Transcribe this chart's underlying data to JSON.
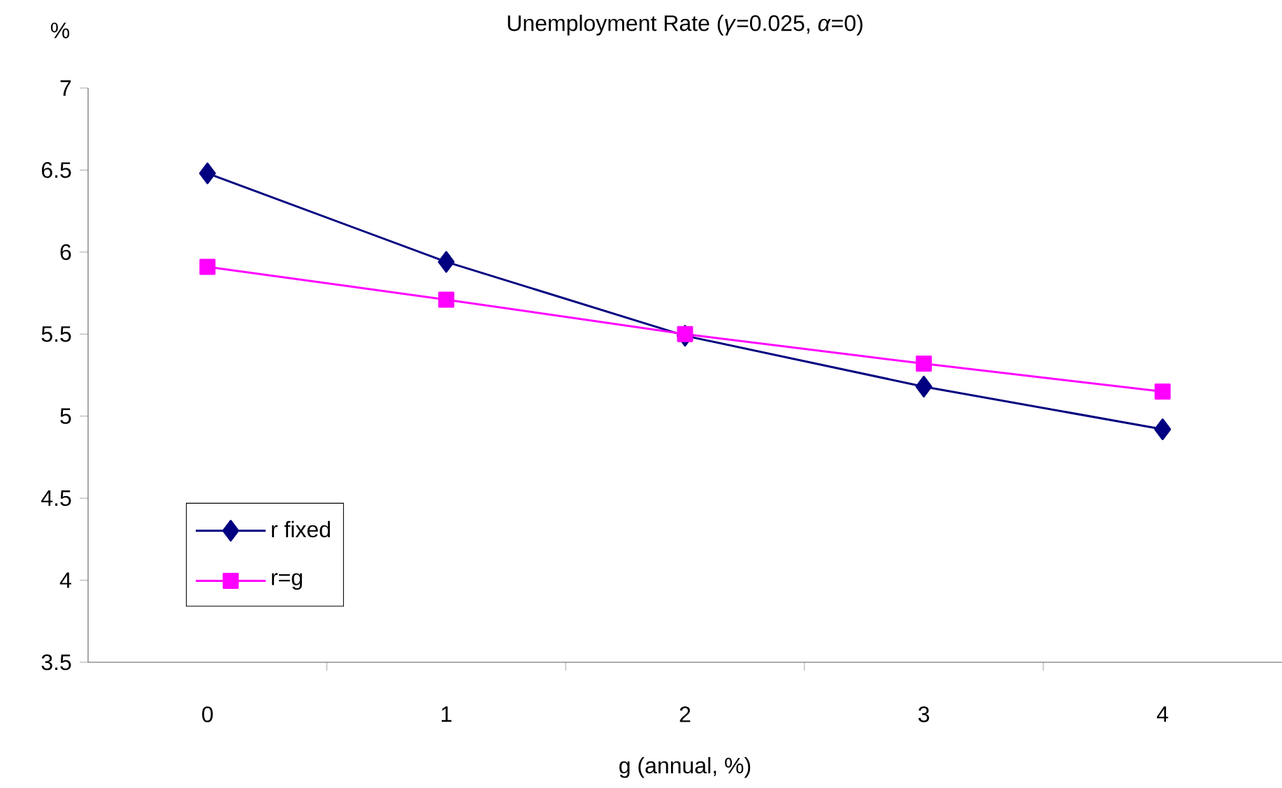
{
  "chart_data": {
    "type": "line",
    "title": "Unemployment Rate (*γ*=0.025, *α*=0)",
    "xlabel": "g (annual, %)",
    "ylabel": "%",
    "categories": [
      "0",
      "1",
      "2",
      "3",
      "4"
    ],
    "series": [
      {
        "name": "r fixed",
        "color": "#000080",
        "marker": "diamond",
        "values": [
          6.48,
          5.94,
          5.49,
          5.18,
          4.92
        ]
      },
      {
        "name": "r=g",
        "color": "#ff00ff",
        "marker": "square",
        "values": [
          5.91,
          5.71,
          5.5,
          5.32,
          5.15
        ]
      }
    ],
    "ylim": [
      3.5,
      7
    ],
    "yticks": [
      3.5,
      4,
      4.5,
      5,
      5.5,
      6,
      6.5,
      7
    ],
    "legend": "bottom left"
  }
}
